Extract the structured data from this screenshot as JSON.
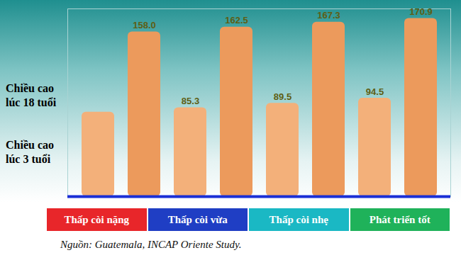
{
  "chart_data": {
    "type": "bar",
    "categories": [
      "Thấp còi nặng",
      "Thấp còi vừa",
      "Thấp còi nhẹ",
      "Phát triển tốt"
    ],
    "series": [
      {
        "name": "Chiều cao lúc 3 tuổi",
        "color": "#f3b07a",
        "values": [
          81,
          85.3,
          89.5,
          94.5
        ],
        "value_labels": [
          null,
          "85.3",
          "89.5",
          "94.5"
        ]
      },
      {
        "name": "Chiều cao lúc 18 tuổi",
        "color": "#ec9a5c",
        "values": [
          158.0,
          162.5,
          167.3,
          170.9
        ],
        "value_labels": [
          "158.0",
          "162.5",
          "167.3",
          "170.9"
        ]
      }
    ],
    "ylim": [
      0,
      180
    ],
    "yticks": [],
    "tick_labels": false,
    "grid": false,
    "data_labels": true,
    "caption": "Nguồn: Guatemala, INCAP Oriente Study."
  }
}
